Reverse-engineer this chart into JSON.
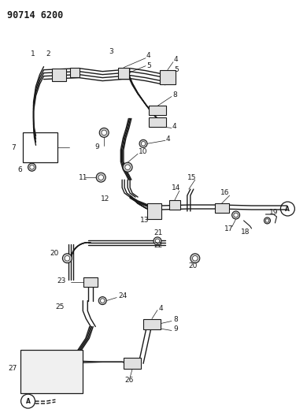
{
  "title": "90714 6200",
  "bg_color": "#ffffff",
  "line_color": "#1a1a1a",
  "fig_width": 3.9,
  "fig_height": 5.33,
  "dpi": 100
}
